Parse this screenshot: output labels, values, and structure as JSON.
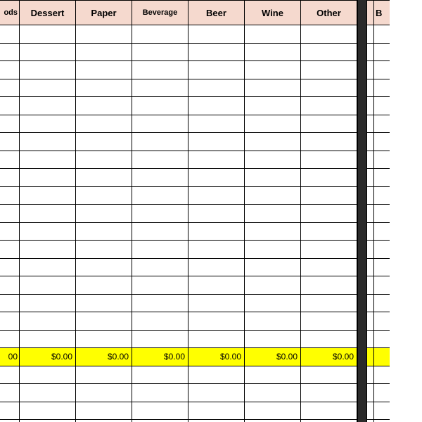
{
  "columns": [
    {
      "label": "ods",
      "smallText": true,
      "partial": "left",
      "total": "00"
    },
    {
      "label": "Dessert",
      "smallText": false,
      "partial": "none",
      "total": "$0.00"
    },
    {
      "label": "Paper",
      "smallText": false,
      "partial": "none",
      "total": "$0.00"
    },
    {
      "label": "Beverage",
      "smallText": true,
      "partial": "none",
      "total": "$0.00"
    },
    {
      "label": "Beer",
      "smallText": false,
      "partial": "none",
      "total": "$0.00"
    },
    {
      "label": "Wine",
      "smallText": false,
      "partial": "none",
      "total": "$0.00"
    },
    {
      "label": "Other",
      "smallText": false,
      "partial": "none",
      "total": "$0.00"
    }
  ],
  "rightColumns": [
    {
      "label": "",
      "smallText": false,
      "partial": "none",
      "total": ""
    },
    {
      "label": "B",
      "smallText": false,
      "partial": "right",
      "total": ""
    }
  ],
  "dataRowCount": 18,
  "trailingRowCount": 3,
  "colors": {
    "headerBg": "#f5d9ce",
    "totalBg": "#ffff00",
    "dividerBg": "#2a2a2a",
    "border": "#000000"
  }
}
